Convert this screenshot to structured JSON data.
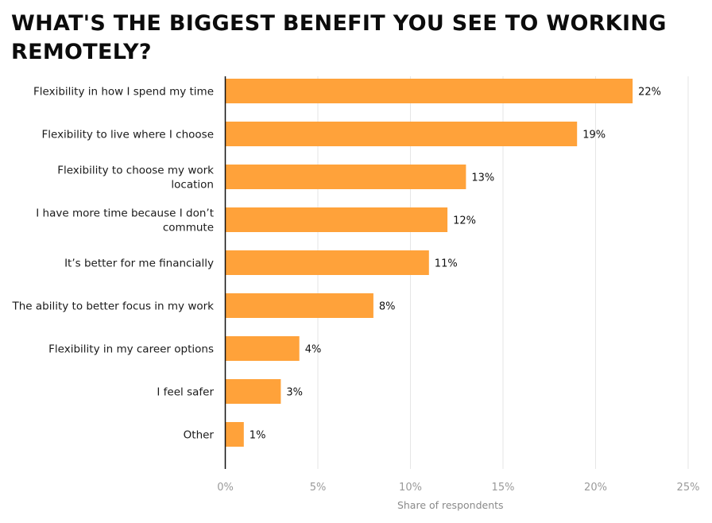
{
  "chart_data": {
    "type": "bar",
    "orientation": "horizontal",
    "title": "WHAT'S THE BIGGEST BENEFIT YOU SEE TO WORKING REMOTELY?",
    "xlabel": "Share of respondents",
    "ylabel": "",
    "categories": [
      [
        "Flexibility in how I spend my time"
      ],
      [
        "Flexibility to live where I choose"
      ],
      [
        "Flexibility to choose my work",
        "location"
      ],
      [
        "I have more time because I don’t",
        "commute"
      ],
      [
        "It’s better for me financially"
      ],
      [
        "The ability to better focus in my work"
      ],
      [
        "Flexibility in my career options"
      ],
      [
        "I feel safer"
      ],
      [
        "Other"
      ]
    ],
    "values": [
      22,
      19,
      13,
      12,
      11,
      8,
      4,
      3,
      1
    ],
    "value_labels": [
      "22%",
      "19%",
      "13%",
      "12%",
      "11%",
      "8%",
      "4%",
      "3%",
      "1%"
    ],
    "xlim": [
      0,
      25
    ],
    "x_ticks": [
      0,
      5,
      10,
      15,
      20,
      25
    ],
    "x_tick_labels": [
      "0%",
      "5%",
      "10%",
      "15%",
      "20%",
      "25%"
    ],
    "grid": "vertical",
    "bar_color": "#FFA23A",
    "grid_color": "#e6e6e6",
    "axis_color": "#111111"
  }
}
